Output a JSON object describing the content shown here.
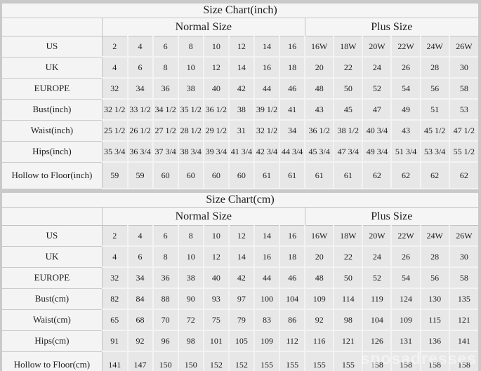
{
  "canvas": {
    "background": "#c9c9c9",
    "table_bg_light": "#f5f5f5",
    "table_bg_cell": "#e7e7e7",
    "watermark_text": "sposadresses"
  },
  "tables": [
    {
      "title": "Size Chart(inch)",
      "groups": {
        "normal": "Normal Size",
        "plus": "Plus Size"
      },
      "normal_col_count": 8,
      "plus_col_count": 6,
      "rows": [
        {
          "label": "US",
          "values": [
            "2",
            "4",
            "6",
            "8",
            "10",
            "12",
            "14",
            "16",
            "16W",
            "18W",
            "20W",
            "22W",
            "24W",
            "26W"
          ]
        },
        {
          "label": "UK",
          "values": [
            "4",
            "6",
            "8",
            "10",
            "12",
            "14",
            "16",
            "18",
            "20",
            "22",
            "24",
            "26",
            "28",
            "30"
          ]
        },
        {
          "label": "EUROPE",
          "values": [
            "32",
            "34",
            "36",
            "38",
            "40",
            "42",
            "44",
            "46",
            "48",
            "50",
            "52",
            "54",
            "56",
            "58"
          ]
        },
        {
          "label": "Bust(inch)",
          "values": [
            "32 1/2",
            "33 1/2",
            "34 1/2",
            "35 1/2",
            "36 1/2",
            "38",
            "39 1/2",
            "41",
            "43",
            "45",
            "47",
            "49",
            "51",
            "53"
          ]
        },
        {
          "label": "Waist(inch)",
          "values": [
            "25 1/2",
            "26 1/2",
            "27 1/2",
            "28 1/2",
            "29 1/2",
            "31",
            "32 1/2",
            "34",
            "36 1/2",
            "38 1/2",
            "40 3/4",
            "43",
            "45 1/2",
            "47 1/2"
          ]
        },
        {
          "label": "Hips(inch)",
          "values": [
            "35 3/4",
            "36 3/4",
            "37 3/4",
            "38 3/4",
            "39 3/4",
            "41 3/4",
            "42 3/4",
            "44 3/4",
            "45 3/4",
            "47 3/4",
            "49 3/4",
            "51 3/4",
            "53 3/4",
            "55 1/2"
          ]
        },
        {
          "label": "Hollow to Floor(inch)",
          "values": [
            "59",
            "59",
            "60",
            "60",
            "60",
            "60",
            "61",
            "61",
            "61",
            "61",
            "62",
            "62",
            "62",
            "62"
          ]
        }
      ]
    },
    {
      "title": "Size Chart(cm)",
      "groups": {
        "normal": "Normal Size",
        "plus": "Plus Size"
      },
      "normal_col_count": 8,
      "plus_col_count": 6,
      "rows": [
        {
          "label": "US",
          "values": [
            "2",
            "4",
            "6",
            "8",
            "10",
            "12",
            "14",
            "16",
            "16W",
            "18W",
            "20W",
            "22W",
            "24W",
            "26W"
          ]
        },
        {
          "label": "UK",
          "values": [
            "4",
            "6",
            "8",
            "10",
            "12",
            "14",
            "16",
            "18",
            "20",
            "22",
            "24",
            "26",
            "28",
            "30"
          ]
        },
        {
          "label": "EUROPE",
          "values": [
            "32",
            "34",
            "36",
            "38",
            "40",
            "42",
            "44",
            "46",
            "48",
            "50",
            "52",
            "54",
            "56",
            "58"
          ]
        },
        {
          "label": "Bust(cm)",
          "values": [
            "82",
            "84",
            "88",
            "90",
            "93",
            "97",
            "100",
            "104",
            "109",
            "114",
            "119",
            "124",
            "130",
            "135"
          ]
        },
        {
          "label": "Waist(cm)",
          "values": [
            "65",
            "68",
            "70",
            "72",
            "75",
            "79",
            "83",
            "86",
            "92",
            "98",
            "104",
            "109",
            "115",
            "121"
          ]
        },
        {
          "label": "Hips(cm)",
          "values": [
            "91",
            "92",
            "96",
            "98",
            "101",
            "105",
            "109",
            "112",
            "116",
            "121",
            "126",
            "131",
            "136",
            "141"
          ]
        },
        {
          "label": "Hollow to Floor(cm)",
          "values": [
            "141",
            "147",
            "150",
            "150",
            "152",
            "152",
            "155",
            "155",
            "155",
            "155",
            "158",
            "158",
            "158",
            "158"
          ]
        }
      ]
    }
  ]
}
